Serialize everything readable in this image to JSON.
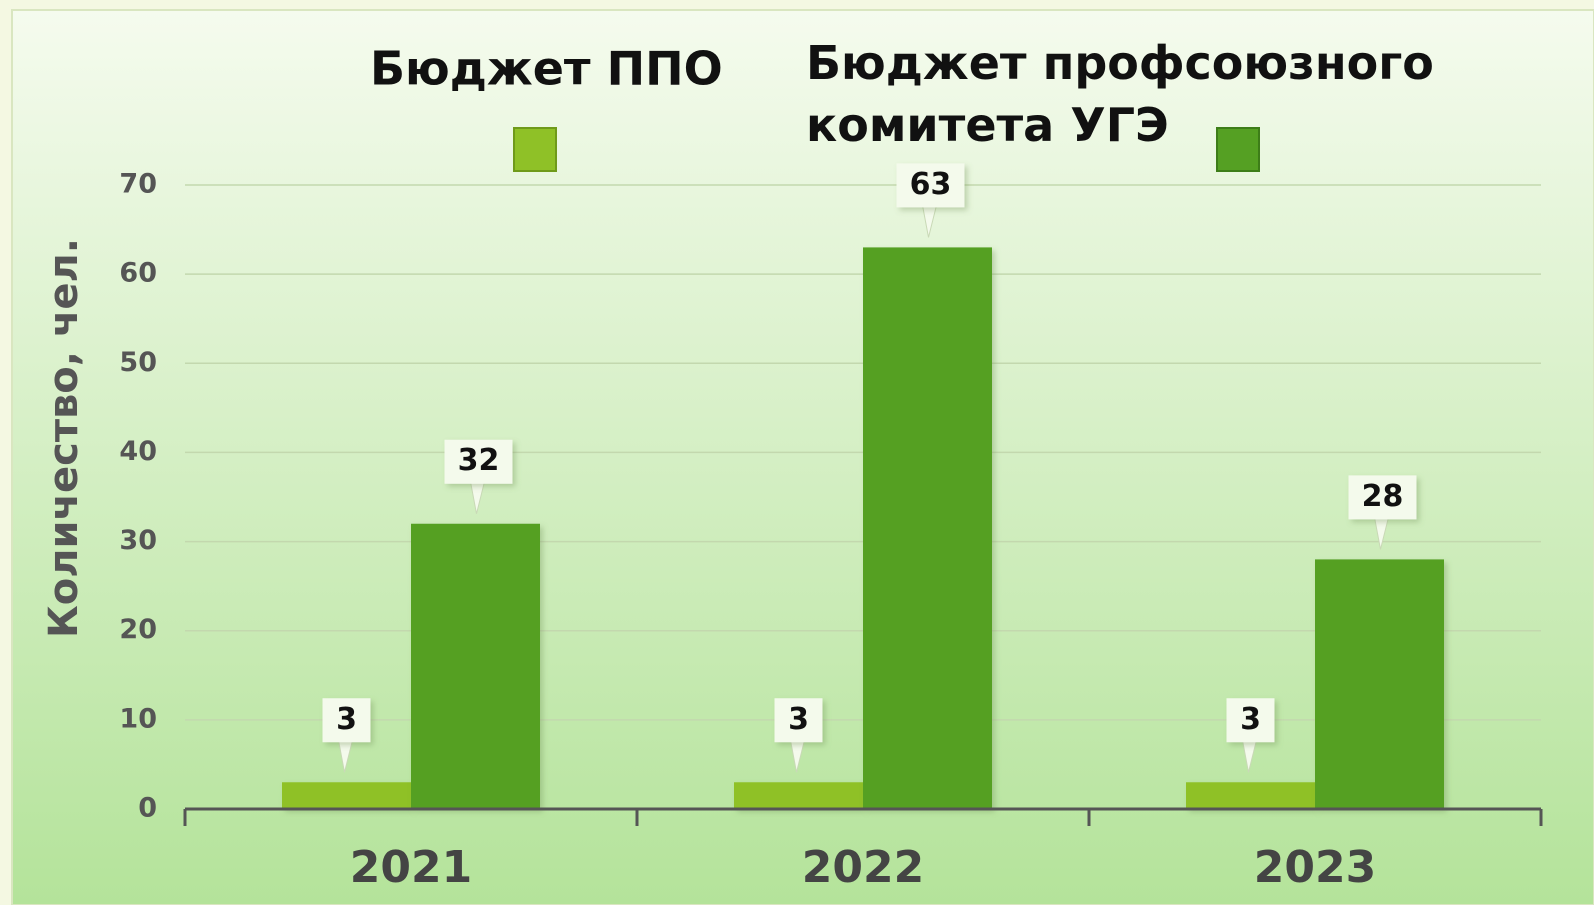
{
  "chart_data": {
    "type": "bar",
    "y_label": "Количество, чел.",
    "categories": [
      "2021",
      "2022",
      "2023"
    ],
    "series": [
      {
        "name": "Бюджет ППО",
        "color": "#8fc127",
        "values": [
          3,
          3,
          3
        ]
      },
      {
        "name": "Бюджет профсоюзного комитета УГЭ",
        "color": "#55a023",
        "values": [
          32,
          63,
          28
        ]
      }
    ],
    "ylim": [
      0,
      70
    ],
    "yticks": [
      0,
      10,
      20,
      30,
      40,
      50,
      60,
      70
    ],
    "grid": true
  }
}
